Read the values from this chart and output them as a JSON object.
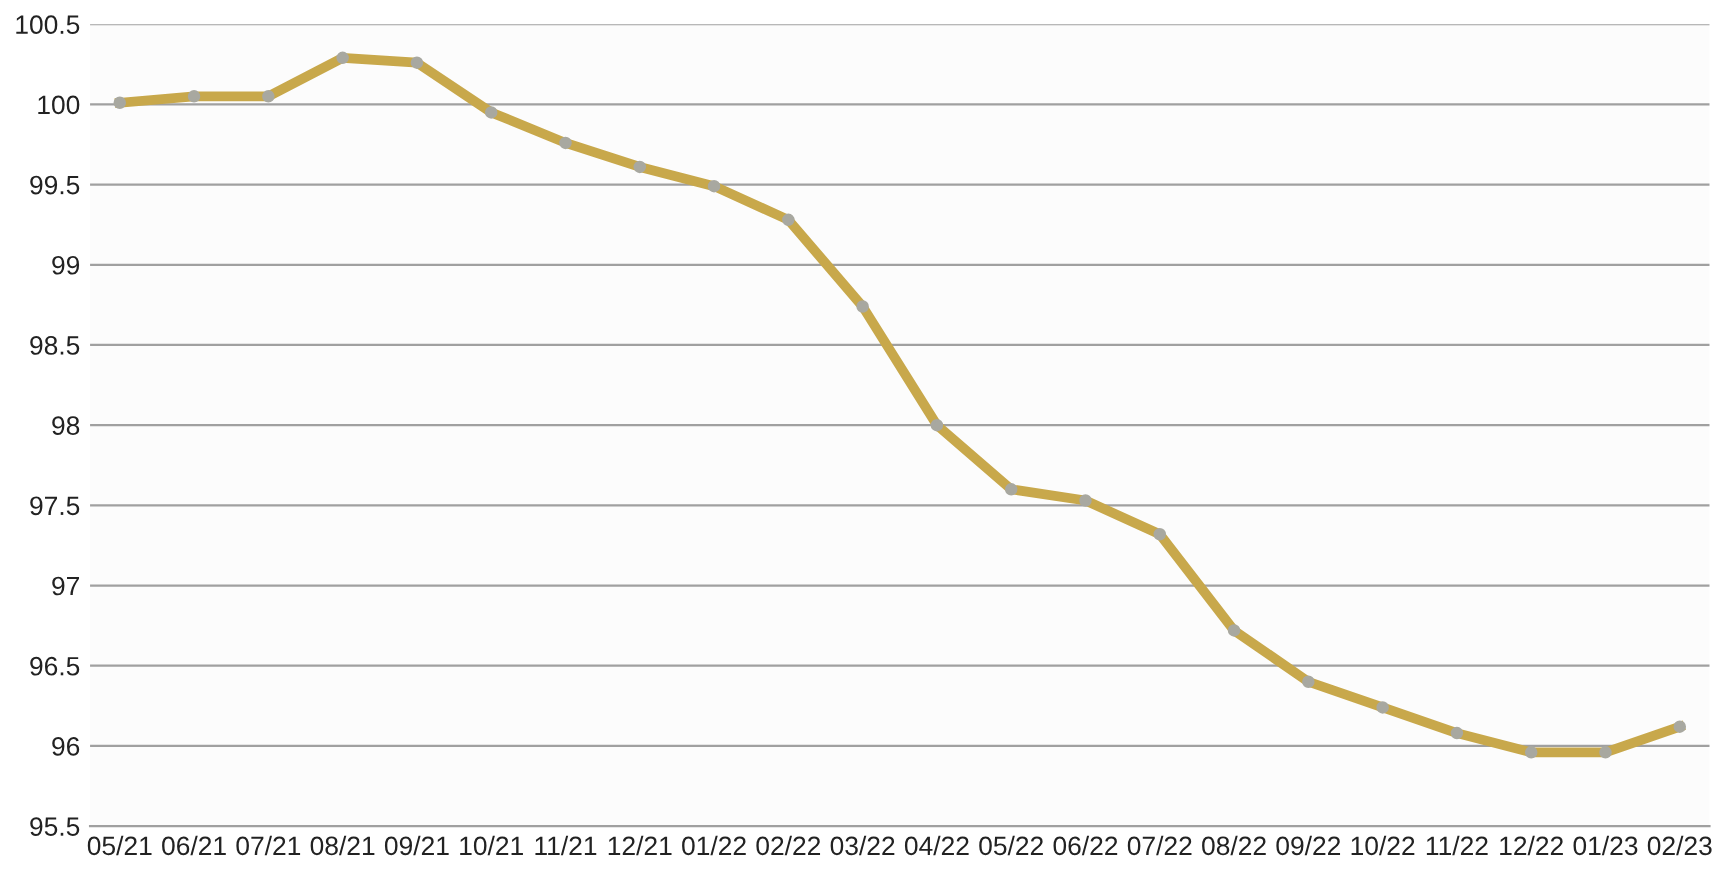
{
  "chart_data": {
    "type": "line",
    "categories": [
      "05/21",
      "06/21",
      "07/21",
      "08/21",
      "09/21",
      "10/21",
      "11/21",
      "12/21",
      "01/22",
      "02/22",
      "03/22",
      "04/22",
      "05/22",
      "06/22",
      "07/22",
      "08/22",
      "09/22",
      "10/22",
      "11/22",
      "12/22",
      "01/23",
      "02/23"
    ],
    "series": [
      {
        "color": "#c8a84b",
        "values": [
          100.01,
          100.05,
          100.05,
          100.29,
          100.26,
          99.95,
          99.76,
          99.61,
          99.49,
          99.28,
          98.74,
          98.0,
          97.6,
          97.53,
          97.32,
          96.72,
          96.4,
          96.24,
          96.08,
          95.96,
          95.96,
          96.12
        ]
      }
    ],
    "ylim": [
      95.5,
      100.5
    ],
    "yticks": [
      95.5,
      96,
      96.5,
      97,
      97.5,
      98,
      98.5,
      99,
      99.5,
      100,
      100.5
    ],
    "grid": "y",
    "marker": "circle",
    "line_style": "solid",
    "legend": false
  }
}
